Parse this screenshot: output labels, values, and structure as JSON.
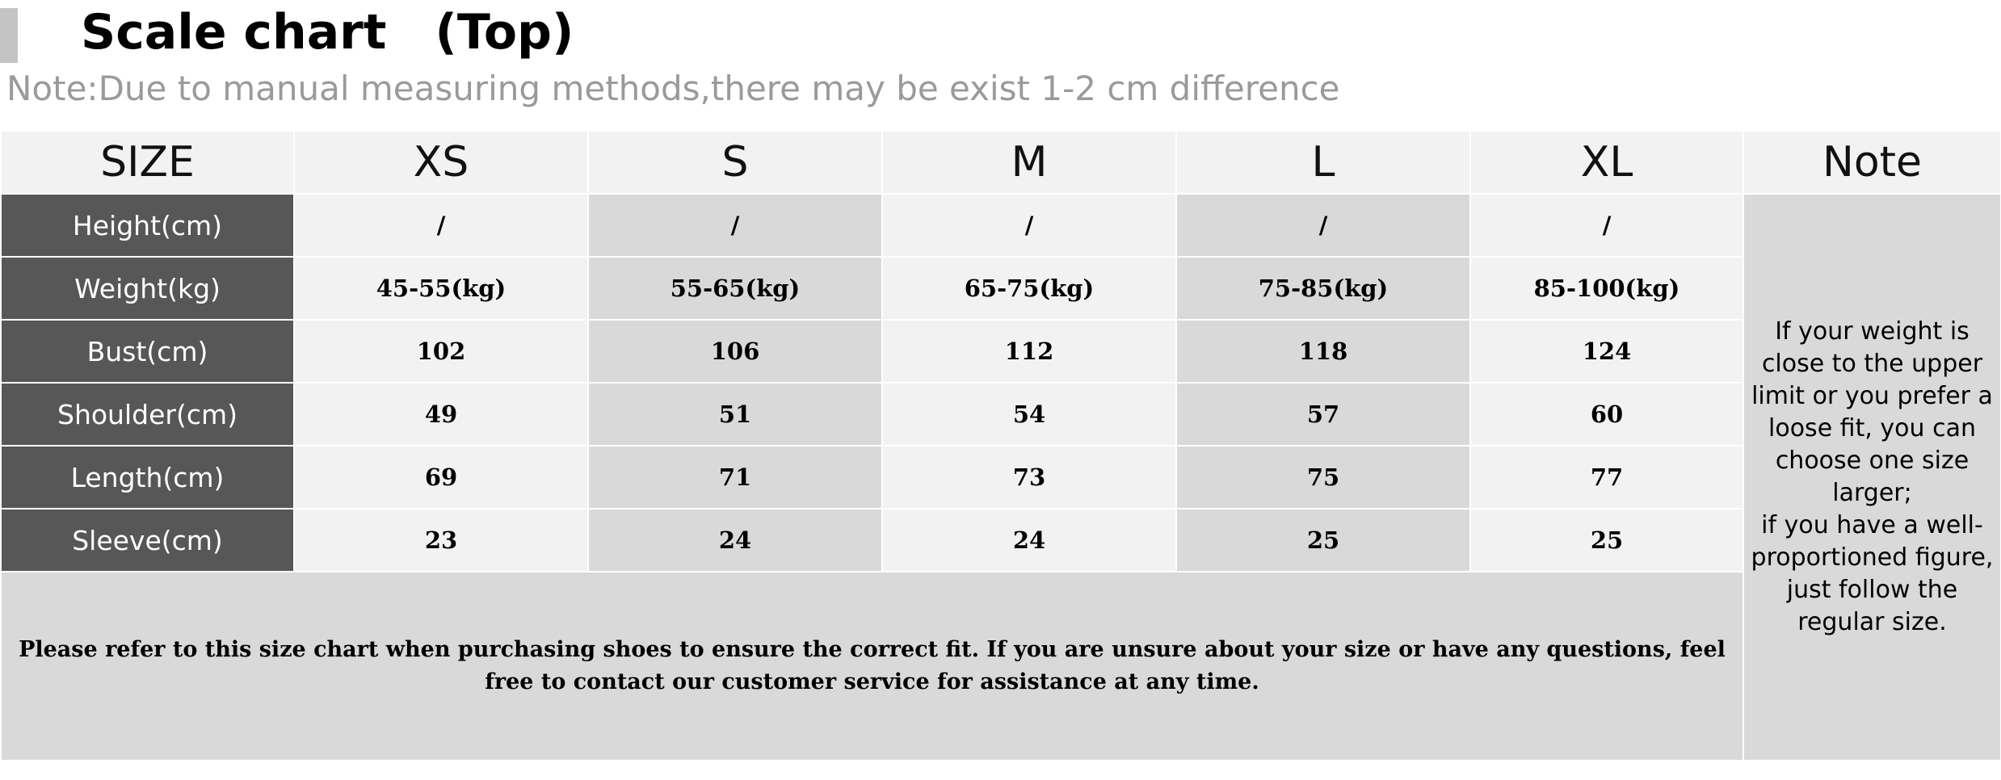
{
  "header": {
    "title": "Scale chart　(Top)",
    "note": "Note:Due to manual measuring methods,there may be exist 1-2 cm difference"
  },
  "table": {
    "size_label": "SIZE",
    "sizes": [
      "XS",
      "S",
      "M",
      "L",
      "XL"
    ],
    "note_header": "Note",
    "rows": [
      {
        "label": "Height(cm)",
        "values": [
          "/",
          "/",
          "/",
          "/",
          "/"
        ]
      },
      {
        "label": "Weight(kg)",
        "values": [
          "45-55(kg)",
          "55-65(kg)",
          "65-75(kg)",
          "75-85(kg)",
          "85-100(kg)"
        ]
      },
      {
        "label": "Bust(cm)",
        "values": [
          "102",
          "106",
          "112",
          "118",
          "124"
        ]
      },
      {
        "label": "Shoulder(cm)",
        "values": [
          "49",
          "51",
          "54",
          "57",
          "60"
        ]
      },
      {
        "label": "Length(cm)",
        "values": [
          "69",
          "71",
          "73",
          "75",
          "77"
        ]
      },
      {
        "label": "Sleeve(cm)",
        "values": [
          "23",
          "24",
          "24",
          "25",
          "25"
        ]
      }
    ],
    "note_text": "If your weight is close to the upper limit or you prefer a loose fit, you can choose one size larger;\nif you have a well-proportioned figure, just follow the regular size.",
    "footer": "Please refer to this size chart when purchasing shoes to ensure the correct fit. If you are unsure about your size or have any questions, feel free to contact our customer service for assistance at any time."
  },
  "colors": {
    "label_bg": "#575757",
    "light_cell": "#f2f2f2",
    "dark_cell": "#d9d9d9",
    "note_text_gray": "#9a9a9a"
  }
}
